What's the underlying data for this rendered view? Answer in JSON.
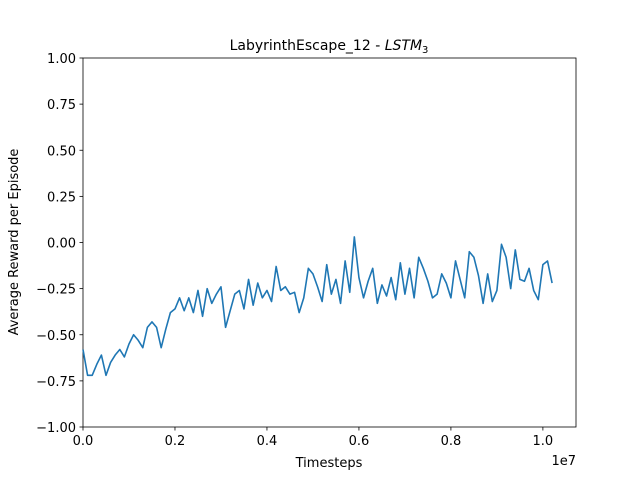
{
  "chart_data": {
    "type": "line",
    "title": "LabyrinthEscape_12 - ",
    "title_math": "LSTM",
    "title_subscript": "3",
    "xlabel": "Timesteps",
    "x_offset_label": "1e7",
    "ylabel": "Average Reward per Episode",
    "xlim": [
      0,
      1.072
    ],
    "ylim": [
      -1,
      1
    ],
    "xticks": [
      {
        "value": 0,
        "label": "0.0"
      },
      0.2,
      0.4,
      0.6,
      0.8,
      {
        "value": 1,
        "label": "1.0"
      }
    ],
    "yticks": [
      {
        "value": -1,
        "label": "−1.00"
      },
      {
        "value": -0.75,
        "label": "−0.75"
      },
      {
        "value": -0.5,
        "label": "−0.50"
      },
      {
        "value": -0.25,
        "label": "−0.25"
      },
      {
        "value": 0,
        "label": "0.00"
      },
      {
        "value": 0.25,
        "label": "0.25"
      },
      {
        "value": 0.5,
        "label": "0.50"
      },
      {
        "value": 0.75,
        "label": "0.75"
      },
      {
        "value": 1,
        "label": "1.00"
      }
    ],
    "grid": false,
    "x": [
      0,
      0.01,
      0.02,
      0.03,
      0.04,
      0.05,
      0.06,
      0.07,
      0.08,
      0.09,
      0.1,
      0.11,
      0.12,
      0.13,
      0.14,
      0.15,
      0.16,
      0.17,
      0.18,
      0.19,
      0.2,
      0.21,
      0.22,
      0.23,
      0.24,
      0.25,
      0.26,
      0.27,
      0.28,
      0.29,
      0.3,
      0.31,
      0.32,
      0.33,
      0.34,
      0.35,
      0.36,
      0.37,
      0.38,
      0.39,
      0.4,
      0.41,
      0.42,
      0.43,
      0.44,
      0.45,
      0.46,
      0.47,
      0.48,
      0.49,
      0.5,
      0.51,
      0.52,
      0.53,
      0.54,
      0.55,
      0.56,
      0.57,
      0.58,
      0.59,
      0.6,
      0.61,
      0.62,
      0.63,
      0.64,
      0.65,
      0.66,
      0.67,
      0.68,
      0.69,
      0.7,
      0.71,
      0.72,
      0.73,
      0.74,
      0.75,
      0.76,
      0.77,
      0.78,
      0.79,
      0.8,
      0.81,
      0.82,
      0.83,
      0.84,
      0.85,
      0.86,
      0.87,
      0.88,
      0.89,
      0.9,
      0.91,
      0.92,
      0.93,
      0.94,
      0.95,
      0.96,
      0.97,
      0.98,
      0.99,
      1.0,
      1.01,
      1.02
    ],
    "series": [
      {
        "name": "reward",
        "color": "#1f77b4",
        "values": [
          -0.58,
          -0.72,
          -0.72,
          -0.66,
          -0.61,
          -0.72,
          -0.65,
          -0.61,
          -0.58,
          -0.62,
          -0.55,
          -0.5,
          -0.53,
          -0.57,
          -0.46,
          -0.43,
          -0.46,
          -0.57,
          -0.47,
          -0.38,
          -0.36,
          -0.3,
          -0.37,
          -0.3,
          -0.38,
          -0.26,
          -0.4,
          -0.25,
          -0.33,
          -0.28,
          -0.24,
          -0.46,
          -0.37,
          -0.28,
          -0.26,
          -0.36,
          -0.2,
          -0.34,
          -0.22,
          -0.3,
          -0.26,
          -0.32,
          -0.13,
          -0.26,
          -0.24,
          -0.28,
          -0.27,
          -0.38,
          -0.3,
          -0.14,
          -0.17,
          -0.24,
          -0.32,
          -0.12,
          -0.28,
          -0.2,
          -0.33,
          -0.1,
          -0.27,
          0.03,
          -0.19,
          -0.3,
          -0.21,
          -0.14,
          -0.33,
          -0.23,
          -0.29,
          -0.19,
          -0.31,
          -0.11,
          -0.28,
          -0.14,
          -0.3,
          -0.08,
          -0.14,
          -0.21,
          -0.3,
          -0.28,
          -0.17,
          -0.22,
          -0.3,
          -0.1,
          -0.2,
          -0.3,
          -0.05,
          -0.08,
          -0.18,
          -0.33,
          -0.17,
          -0.32,
          -0.26,
          -0.01,
          -0.08,
          -0.25,
          -0.04,
          -0.2,
          -0.21,
          -0.14,
          -0.26,
          -0.31,
          -0.12,
          -0.1,
          -0.22
        ]
      }
    ]
  }
}
